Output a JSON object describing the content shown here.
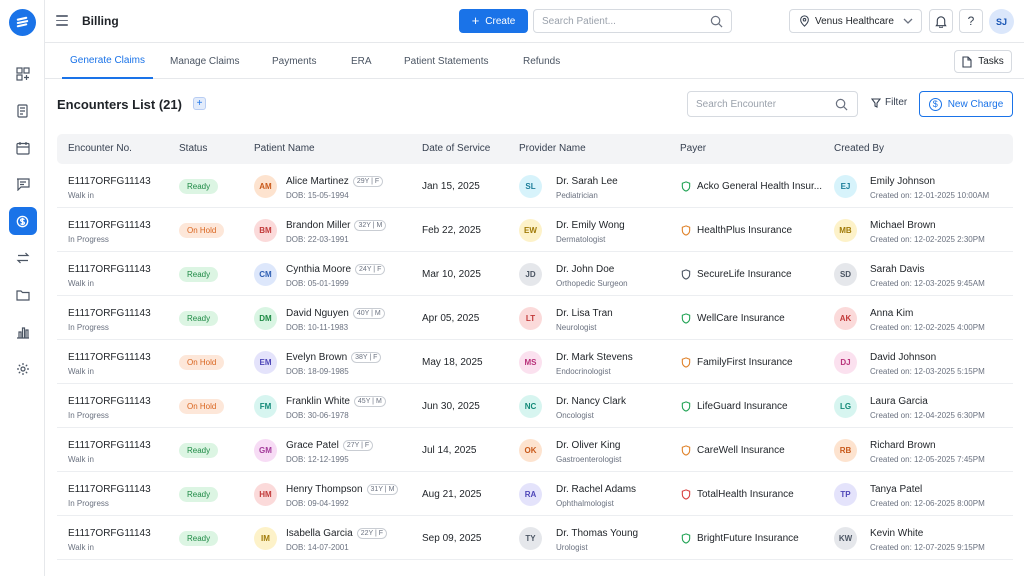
{
  "header": {
    "page_title": "Billing",
    "create_label": "Create",
    "search_placeholder": "Search Patient...",
    "location": "Venus Healthcare",
    "help_label": "?",
    "user_initials": "SJ"
  },
  "tabs": [
    {
      "label": "Generate Claims",
      "active": true
    },
    {
      "label": "Manage Claims",
      "active": false
    },
    {
      "label": "Payments",
      "active": false
    },
    {
      "label": "ERA",
      "active": false
    },
    {
      "label": "Patient Statements",
      "active": false
    },
    {
      "label": "Refunds",
      "active": false
    }
  ],
  "tasks_label": "Tasks",
  "list": {
    "title": "Encounters List (21)",
    "add_label": "+",
    "search_placeholder": "Search Encounter",
    "filter_label": "Filter",
    "new_charge_label": "New Charge"
  },
  "table": {
    "columns": [
      "Encounter No.",
      "Status",
      "Patient Name",
      "Date of Service",
      "Provider Name",
      "Payer",
      "Created By"
    ],
    "rows": [
      {
        "enc": "E1117ORFG11143",
        "type": "Walk in",
        "status": "Ready",
        "p_init": "AM",
        "p_name": "Alice Martinez",
        "age": "29Y | F",
        "dob": "DOB: 15-05-1994",
        "dos": "Jan 15, 2025",
        "d_init": "SL",
        "doctor": "Dr. Sarah Lee",
        "spec": "Pediatrician",
        "payer": "Acko General Health Insur...",
        "payer_color": "#22a355",
        "c_init": "EJ",
        "creator": "Emily Johnson",
        "created": "Created on: 12-01-2025 10:00AM",
        "p_bg": "#fde3cf",
        "p_fg": "#c9591a",
        "d_bg": "#d7f3fb",
        "d_fg": "#1b7d99",
        "c_bg": "#d7f3fb",
        "c_fg": "#1b7d99"
      },
      {
        "enc": "E1117ORFG11143",
        "type": "In Progress",
        "status": "On Hold",
        "p_init": "BM",
        "p_name": "Brandon Miller",
        "age": "32Y | M",
        "dob": "DOB: 22-03-1991",
        "dos": "Feb 22, 2025",
        "d_init": "EW",
        "doctor": "Dr. Emily Wong",
        "spec": "Dermatologist",
        "payer": "HealthPlus Insurance",
        "payer_color": "#e0832b",
        "c_init": "MB",
        "creator": "Michael Brown",
        "created": "Created on: 12-02-2025 2:30PM",
        "p_bg": "#fbdada",
        "p_fg": "#c23a3a",
        "d_bg": "#fdf2c9",
        "d_fg": "#a07a07",
        "c_bg": "#fdf2c9",
        "c_fg": "#a07a07"
      },
      {
        "enc": "E1117ORFG11143",
        "type": "Walk in",
        "status": "Ready",
        "p_init": "CM",
        "p_name": "Cynthia Moore",
        "age": "24Y | F",
        "dob": "DOB: 05-01-1999",
        "dos": "Mar 10, 2025",
        "d_init": "JD",
        "doctor": "Dr. John Doe",
        "spec": "Orthopedic Surgeon",
        "payer": "SecureLife Insurance",
        "payer_color": "#4b5563",
        "c_init": "SD",
        "creator": "Sarah Davis",
        "created": "Created on: 12-03-2025 9:45AM",
        "p_bg": "#dde7fb",
        "p_fg": "#2f5fb3",
        "d_bg": "#e5e7eb",
        "d_fg": "#4b5563",
        "c_bg": "#e5e7eb",
        "c_fg": "#4b5563"
      },
      {
        "enc": "E1117ORFG11143",
        "type": "In Progress",
        "status": "Ready",
        "p_init": "DM",
        "p_name": "David Nguyen",
        "age": "40Y | M",
        "dob": "DOB: 10-11-1983",
        "dos": "Apr 05, 2025",
        "d_init": "LT",
        "doctor": "Dr. Lisa Tran",
        "spec": "Neurologist",
        "payer": "WellCare Insurance",
        "payer_color": "#22a355",
        "c_init": "AK",
        "creator": "Anna Kim",
        "created": "Created on: 12-02-2025 4:00PM",
        "p_bg": "#d9f5e3",
        "p_fg": "#1e8a45",
        "d_bg": "#fbdada",
        "d_fg": "#c23a3a",
        "c_bg": "#fbdada",
        "c_fg": "#c23a3a"
      },
      {
        "enc": "E1117ORFG11143",
        "type": "Walk in",
        "status": "On Hold",
        "p_init": "EM",
        "p_name": "Evelyn Brown",
        "age": "38Y | F",
        "dob": "DOB: 18-09-1985",
        "dos": "May 18, 2025",
        "d_init": "MS",
        "doctor": "Dr. Mark Stevens",
        "spec": "Endocrinologist",
        "payer": "FamilyFirst Insurance",
        "payer_color": "#e0832b",
        "c_init": "DJ",
        "creator": "David Johnson",
        "created": "Created on: 12-03-2025 5:15PM",
        "p_bg": "#e4e3fb",
        "p_fg": "#4e46b8",
        "d_bg": "#fbe1ef",
        "d_fg": "#b8327a",
        "c_bg": "#fbe1ef",
        "c_fg": "#b8327a"
      },
      {
        "enc": "E1117ORFG11143",
        "type": "In Progress",
        "status": "On Hold",
        "p_init": "FM",
        "p_name": "Franklin White",
        "age": "45Y | M",
        "dob": "DOB: 30-06-1978",
        "dos": "Jun 30, 2025",
        "d_init": "NC",
        "doctor": "Dr. Nancy Clark",
        "spec": "Oncologist",
        "payer": "LifeGuard Insurance",
        "payer_color": "#22a355",
        "c_init": "LG",
        "creator": "Laura Garcia",
        "created": "Created on: 12-04-2025 6:30PM",
        "p_bg": "#d7f5f0",
        "p_fg": "#148a78",
        "d_bg": "#d7f5f0",
        "d_fg": "#148a78",
        "c_bg": "#d7f5f0",
        "c_fg": "#148a78"
      },
      {
        "enc": "E1117ORFG11143",
        "type": "Walk in",
        "status": "Ready",
        "p_init": "GM",
        "p_name": "Grace Patel",
        "age": "27Y | F",
        "dob": "DOB: 12-12-1995",
        "dos": "Jul 14, 2025",
        "d_init": "OK",
        "doctor": "Dr. Oliver King",
        "spec": "Gastroenterologist",
        "payer": "CareWell Insurance",
        "payer_color": "#e0832b",
        "c_init": "RB",
        "creator": "Richard Brown",
        "created": "Created on: 12-05-2025 7:45PM",
        "p_bg": "#f7dcf5",
        "p_fg": "#a33a9a",
        "d_bg": "#fde3cf",
        "d_fg": "#c9591a",
        "c_bg": "#fde3cf",
        "c_fg": "#c9591a"
      },
      {
        "enc": "E1117ORFG11143",
        "type": "In Progress",
        "status": "Ready",
        "p_init": "HM",
        "p_name": "Henry Thompson",
        "age": "31Y | M",
        "dob": "DOB: 09-04-1992",
        "dos": "Aug 21, 2025",
        "d_init": "RA",
        "doctor": "Dr. Rachel Adams",
        "spec": "Ophthalmologist",
        "payer": "TotalHealth Insurance",
        "payer_color": "#d94141",
        "c_init": "TP",
        "creator": "Tanya Patel",
        "created": "Created on: 12-06-2025 8:00PM",
        "p_bg": "#fbdada",
        "p_fg": "#c23a3a",
        "d_bg": "#e4e3fb",
        "d_fg": "#4e46b8",
        "c_bg": "#e4e3fb",
        "c_fg": "#4e46b8"
      },
      {
        "enc": "E1117ORFG11143",
        "type": "Walk in",
        "status": "Ready",
        "p_init": "IM",
        "p_name": "Isabella Garcia",
        "age": "22Y | F",
        "dob": "DOB: 14-07-2001",
        "dos": "Sep 09, 2025",
        "d_init": "TY",
        "doctor": "Dr. Thomas Young",
        "spec": "Urologist",
        "payer": "BrightFuture Insurance",
        "payer_color": "#22a355",
        "c_init": "KW",
        "creator": "Kevin White",
        "created": "Created on: 12-07-2025 9:15PM",
        "p_bg": "#fdf2c9",
        "p_fg": "#a07a07",
        "d_bg": "#e5e7eb",
        "d_fg": "#4b5563",
        "c_bg": "#e5e7eb",
        "c_fg": "#4b5563"
      }
    ]
  }
}
